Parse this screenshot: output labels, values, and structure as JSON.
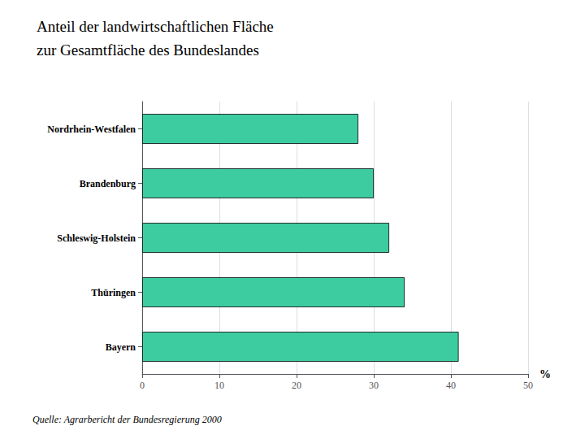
{
  "chart_data": {
    "type": "bar",
    "orientation": "horizontal",
    "title": "Anteil der landwirtschaftlichen Fläche",
    "subtitle": "zur Gesamtfläche des Bundeslandes",
    "categories": [
      "Bayern",
      "Thüringen",
      "Schleswig-Holstein",
      "Brandenburg",
      "Nordrhein-Westfalen"
    ],
    "values": [
      41,
      34,
      32,
      30,
      28
    ],
    "color": "#3dcca0",
    "xlabel": "%",
    "xlim": [
      0,
      50
    ],
    "xticks": [
      0,
      10,
      20,
      30,
      40,
      50
    ],
    "grid": true,
    "source": "Quelle: Agrarbericht der Bundesregierung 2000"
  }
}
